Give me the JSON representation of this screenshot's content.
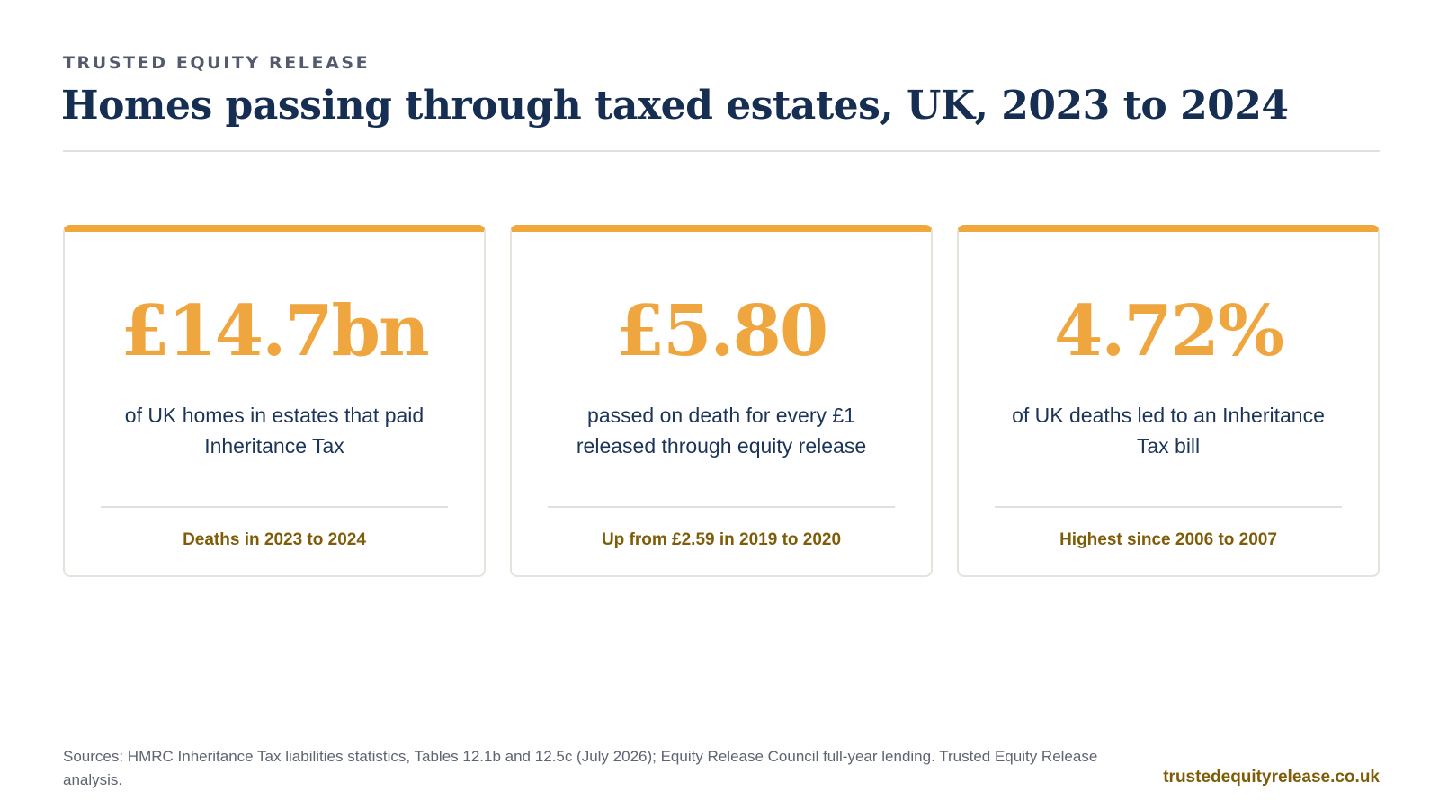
{
  "header": {
    "brand": "TRUSTED EQUITY RELEASE",
    "title": "Homes passing through taxed estates, UK, 2023 to 2024"
  },
  "cards": [
    {
      "value": "£14.7bn",
      "description": "of UK homes in estates that paid Inheritance Tax",
      "note": "Deaths in 2023 to 2024"
    },
    {
      "value": "£5.80",
      "description": "passed on death for every £1 released through equity release",
      "note": "Up from £2.59 in 2019 to 2020"
    },
    {
      "value": "4.72%",
      "description": "of UK deaths led to an Inheritance Tax bill",
      "note": "Highest since 2006 to 2007"
    }
  ],
  "footer": {
    "sources": "Sources: HMRC Inheritance Tax liabilities statistics, Tables 12.1b and 12.5c (July 2026); Equity Release Council full-year lending. Trusted Equity Release analysis.",
    "site": "trustedequityrelease.co.uk"
  },
  "colors": {
    "accent": "#efa63f",
    "title": "#172e53",
    "note": "#7f5d08"
  }
}
